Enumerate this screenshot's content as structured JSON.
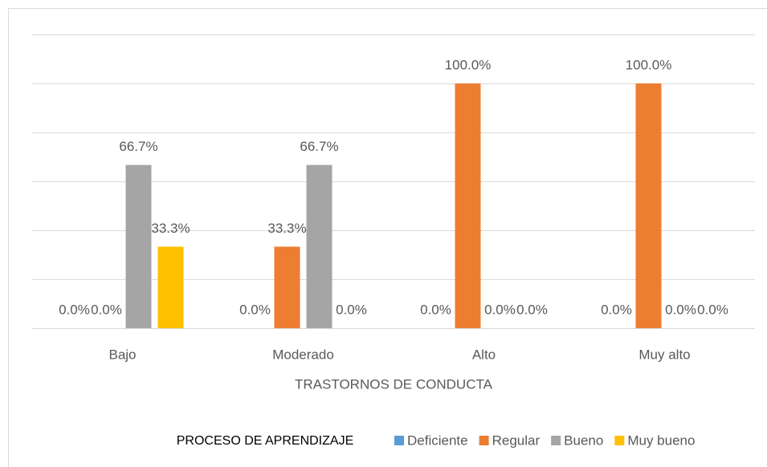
{
  "chart_data": {
    "type": "bar",
    "xlabel": "TRASTORNOS DE CONDUCTA",
    "legend_title": "PROCESO DE APRENDIZAJE",
    "categories": [
      "Bajo",
      "Moderado",
      "Alto",
      "Muy alto"
    ],
    "series": [
      {
        "name": "Deficiente",
        "color": "#5b9bd5",
        "values": [
          0,
          0,
          0,
          0
        ],
        "value_labels": [
          "0.0%",
          "0.0%",
          "0.0%",
          "0.0%"
        ]
      },
      {
        "name": "Regular",
        "color": "#ed7d31",
        "values": [
          0,
          33.3,
          100,
          100
        ],
        "value_labels": [
          "0.0%",
          "33.3%",
          "100.0%",
          "100.0%"
        ]
      },
      {
        "name": "Bueno",
        "color": "#a5a5a5",
        "values": [
          66.7,
          66.7,
          0,
          0
        ],
        "value_labels": [
          "66.7%",
          "66.7%",
          "0.0%",
          "0.0%"
        ]
      },
      {
        "name": "Muy bueno",
        "color": "#ffc000",
        "values": [
          33.3,
          0,
          0,
          0
        ],
        "value_labels": [
          "33.3%",
          "0.0%",
          "0.0%",
          "0.0%"
        ]
      }
    ],
    "ylim": [
      0,
      120
    ],
    "yticks": [
      0,
      20,
      40,
      60,
      80,
      100,
      120
    ],
    "grid": true,
    "legend": "bottom"
  }
}
